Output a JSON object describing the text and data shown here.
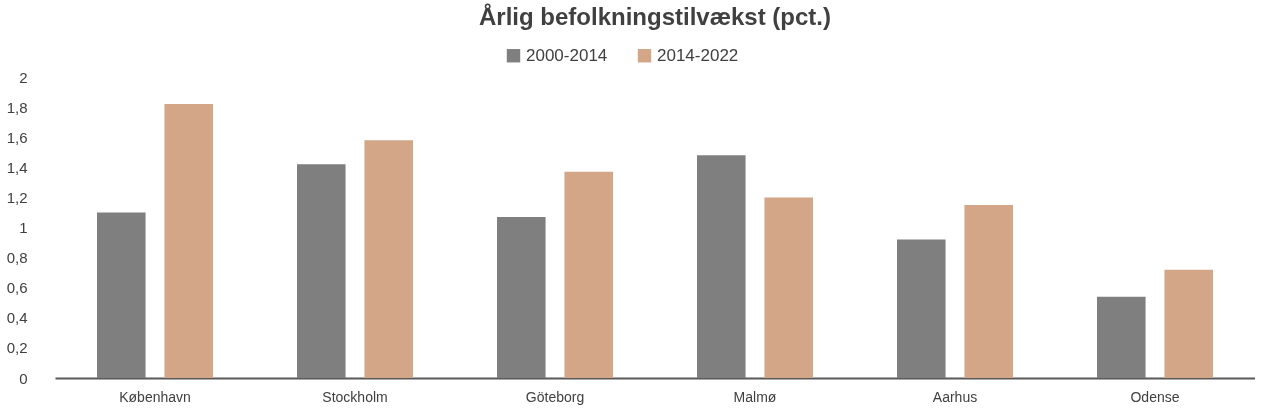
{
  "chart_data": {
    "type": "bar",
    "title": "Årlig befolkningstilvækst (pct.)",
    "categories": [
      "København",
      "Stockholm",
      "Göteborg",
      "Malmø",
      "Aarhus",
      "Odense"
    ],
    "series": [
      {
        "name": "2000-2014",
        "color": "#7f7f7f",
        "values": [
          1.1,
          1.42,
          1.07,
          1.48,
          0.92,
          0.54
        ]
      },
      {
        "name": "2014-2022",
        "color": "#d2a687",
        "values": [
          1.82,
          1.58,
          1.37,
          1.2,
          1.15,
          0.72
        ]
      }
    ],
    "ylim": [
      0,
      2
    ],
    "yticks": [
      0,
      {
        "value": 0.2,
        "label": "0,2"
      },
      {
        "value": 0.4,
        "label": "0,4"
      },
      {
        "value": 0.6,
        "label": "0,6"
      },
      {
        "value": 0.8,
        "label": "0,8"
      },
      1,
      {
        "value": 1.2,
        "label": "1,2"
      },
      {
        "value": 1.4,
        "label": "1,4"
      },
      {
        "value": 1.6,
        "label": "1,6"
      },
      {
        "value": 1.8,
        "label": "1,8"
      },
      2
    ],
    "grid": false,
    "legend": "top"
  }
}
